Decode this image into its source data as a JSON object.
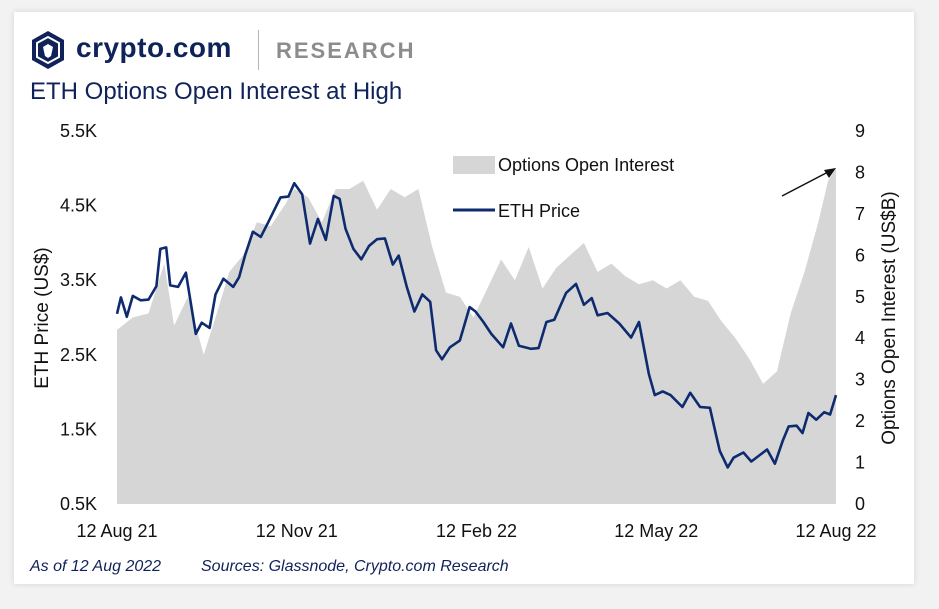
{
  "header": {
    "brand_name": "crypto.com",
    "section": "RESEARCH",
    "logo_icon": "crypto-com-lion-shield-icon"
  },
  "footer": {
    "as_of": "As of 12 Aug 2022",
    "sources": "Sources: Glassnode, Crypto.com Research"
  },
  "colors": {
    "brand_navy": "#10225a",
    "line": "#0d2b6e",
    "area": "#d6d6d6"
  },
  "chart_data": {
    "type": "line",
    "title": "ETH Options Open Interest at High",
    "x_ticks": [
      "12 Aug 21",
      "12 Nov 21",
      "12 Feb 22",
      "12 May 22",
      "12 Aug 22"
    ],
    "x_range": [
      "2021-08-12",
      "2022-08-12"
    ],
    "left_axis": {
      "label": "ETH Price (US$)",
      "range": [
        500,
        5500
      ],
      "ticks": [
        "0.5K",
        "1.5K",
        "2.5K",
        "3.5K",
        "4.5K",
        "5.5K"
      ]
    },
    "right_axis": {
      "label": "Options Open Interest (US$B)",
      "range": [
        0,
        9
      ],
      "ticks": [
        "0",
        "1",
        "2",
        "3",
        "4",
        "5",
        "6",
        "7",
        "8",
        "9"
      ]
    },
    "legend": {
      "placement": "top-center",
      "entries": [
        "Options Open Interest",
        "ETH Price"
      ]
    },
    "series": [
      {
        "name": "Options Open Interest",
        "type": "area",
        "axis": "right",
        "points": [
          [
            "2021-08-12",
            4.2
          ],
          [
            "2021-08-20",
            4.5
          ],
          [
            "2021-08-28",
            4.6
          ],
          [
            "2021-09-05",
            5.8
          ],
          [
            "2021-09-10",
            4.3
          ],
          [
            "2021-09-17",
            5.0
          ],
          [
            "2021-09-25",
            3.6
          ],
          [
            "2021-10-01",
            4.5
          ],
          [
            "2021-10-08",
            5.6
          ],
          [
            "2021-10-15",
            6.0
          ],
          [
            "2021-10-22",
            6.8
          ],
          [
            "2021-10-29",
            6.7
          ],
          [
            "2021-11-05",
            7.2
          ],
          [
            "2021-11-10",
            7.6
          ],
          [
            "2021-11-17",
            7.4
          ],
          [
            "2021-11-24",
            6.8
          ],
          [
            "2021-12-01",
            7.6
          ],
          [
            "2021-12-08",
            7.6
          ],
          [
            "2021-12-15",
            7.8
          ],
          [
            "2021-12-22",
            7.1
          ],
          [
            "2021-12-29",
            7.6
          ],
          [
            "2022-01-05",
            7.4
          ],
          [
            "2022-01-12",
            7.6
          ],
          [
            "2022-01-19",
            6.2
          ],
          [
            "2022-01-26",
            5.1
          ],
          [
            "2022-02-02",
            5.0
          ],
          [
            "2022-02-09",
            4.5
          ],
          [
            "2022-02-16",
            5.2
          ],
          [
            "2022-02-23",
            5.9
          ],
          [
            "2022-03-02",
            5.4
          ],
          [
            "2022-03-09",
            6.2
          ],
          [
            "2022-03-16",
            5.2
          ],
          [
            "2022-03-23",
            5.7
          ],
          [
            "2022-03-30",
            6.0
          ],
          [
            "2022-04-06",
            6.3
          ],
          [
            "2022-04-13",
            5.6
          ],
          [
            "2022-04-20",
            5.8
          ],
          [
            "2022-04-27",
            5.5
          ],
          [
            "2022-05-04",
            5.3
          ],
          [
            "2022-05-11",
            5.4
          ],
          [
            "2022-05-18",
            5.2
          ],
          [
            "2022-05-25",
            5.4
          ],
          [
            "2022-06-01",
            5.0
          ],
          [
            "2022-06-08",
            4.9
          ],
          [
            "2022-06-15",
            4.4
          ],
          [
            "2022-06-22",
            4.0
          ],
          [
            "2022-06-29",
            3.5
          ],
          [
            "2022-07-06",
            2.9
          ],
          [
            "2022-07-13",
            3.2
          ],
          [
            "2022-07-20",
            4.6
          ],
          [
            "2022-07-27",
            5.6
          ],
          [
            "2022-08-03",
            6.8
          ],
          [
            "2022-08-08",
            7.8
          ],
          [
            "2022-08-12",
            8.1
          ]
        ]
      },
      {
        "name": "ETH Price",
        "type": "line",
        "axis": "left",
        "points": [
          [
            "2021-08-12",
            3050
          ],
          [
            "2021-08-14",
            3270
          ],
          [
            "2021-08-17",
            3010
          ],
          [
            "2021-08-20",
            3290
          ],
          [
            "2021-08-24",
            3230
          ],
          [
            "2021-08-28",
            3240
          ],
          [
            "2021-09-01",
            3420
          ],
          [
            "2021-09-03",
            3920
          ],
          [
            "2021-09-06",
            3940
          ],
          [
            "2021-09-08",
            3430
          ],
          [
            "2021-09-12",
            3410
          ],
          [
            "2021-09-16",
            3600
          ],
          [
            "2021-09-21",
            2780
          ],
          [
            "2021-09-24",
            2930
          ],
          [
            "2021-09-28",
            2860
          ],
          [
            "2021-10-01",
            3310
          ],
          [
            "2021-10-05",
            3520
          ],
          [
            "2021-10-10",
            3410
          ],
          [
            "2021-10-13",
            3540
          ],
          [
            "2021-10-16",
            3830
          ],
          [
            "2021-10-20",
            4150
          ],
          [
            "2021-10-24",
            4080
          ],
          [
            "2021-10-28",
            4290
          ],
          [
            "2021-11-03",
            4610
          ],
          [
            "2021-11-07",
            4620
          ],
          [
            "2021-11-10",
            4800
          ],
          [
            "2021-11-14",
            4650
          ],
          [
            "2021-11-18",
            3990
          ],
          [
            "2021-11-22",
            4320
          ],
          [
            "2021-11-26",
            4040
          ],
          [
            "2021-11-30",
            4630
          ],
          [
            "2021-12-03",
            4590
          ],
          [
            "2021-12-06",
            4190
          ],
          [
            "2021-12-10",
            3920
          ],
          [
            "2021-12-14",
            3780
          ],
          [
            "2021-12-18",
            3960
          ],
          [
            "2021-12-22",
            4050
          ],
          [
            "2021-12-26",
            4060
          ],
          [
            "2021-12-30",
            3710
          ],
          [
            "2022-01-02",
            3830
          ],
          [
            "2022-01-06",
            3420
          ],
          [
            "2022-01-10",
            3080
          ],
          [
            "2022-01-14",
            3310
          ],
          [
            "2022-01-18",
            3210
          ],
          [
            "2022-01-21",
            2560
          ],
          [
            "2022-01-24",
            2440
          ],
          [
            "2022-01-28",
            2600
          ],
          [
            "2022-02-02",
            2690
          ],
          [
            "2022-02-07",
            3140
          ],
          [
            "2022-02-10",
            3080
          ],
          [
            "2022-02-14",
            2940
          ],
          [
            "2022-02-18",
            2780
          ],
          [
            "2022-02-24",
            2600
          ],
          [
            "2022-02-28",
            2920
          ],
          [
            "2022-03-04",
            2620
          ],
          [
            "2022-03-10",
            2580
          ],
          [
            "2022-03-14",
            2590
          ],
          [
            "2022-03-18",
            2940
          ],
          [
            "2022-03-22",
            2970
          ],
          [
            "2022-03-28",
            3330
          ],
          [
            "2022-04-02",
            3450
          ],
          [
            "2022-04-06",
            3170
          ],
          [
            "2022-04-10",
            3260
          ],
          [
            "2022-04-13",
            3030
          ],
          [
            "2022-04-18",
            3060
          ],
          [
            "2022-04-24",
            2920
          ],
          [
            "2022-04-30",
            2730
          ],
          [
            "2022-05-04",
            2940
          ],
          [
            "2022-05-09",
            2240
          ],
          [
            "2022-05-12",
            1960
          ],
          [
            "2022-05-16",
            2010
          ],
          [
            "2022-05-20",
            1960
          ],
          [
            "2022-05-26",
            1800
          ],
          [
            "2022-05-30",
            1990
          ],
          [
            "2022-06-04",
            1800
          ],
          [
            "2022-06-09",
            1790
          ],
          [
            "2022-06-12",
            1440
          ],
          [
            "2022-06-14",
            1210
          ],
          [
            "2022-06-18",
            990
          ],
          [
            "2022-06-21",
            1120
          ],
          [
            "2022-06-26",
            1190
          ],
          [
            "2022-06-30",
            1070
          ],
          [
            "2022-07-04",
            1150
          ],
          [
            "2022-07-08",
            1230
          ],
          [
            "2022-07-12",
            1040
          ],
          [
            "2022-07-16",
            1350
          ],
          [
            "2022-07-19",
            1540
          ],
          [
            "2022-07-23",
            1550
          ],
          [
            "2022-07-26",
            1450
          ],
          [
            "2022-07-29",
            1720
          ],
          [
            "2022-08-02",
            1630
          ],
          [
            "2022-08-06",
            1730
          ],
          [
            "2022-08-09",
            1700
          ],
          [
            "2022-08-12",
            1960
          ]
        ]
      }
    ]
  }
}
